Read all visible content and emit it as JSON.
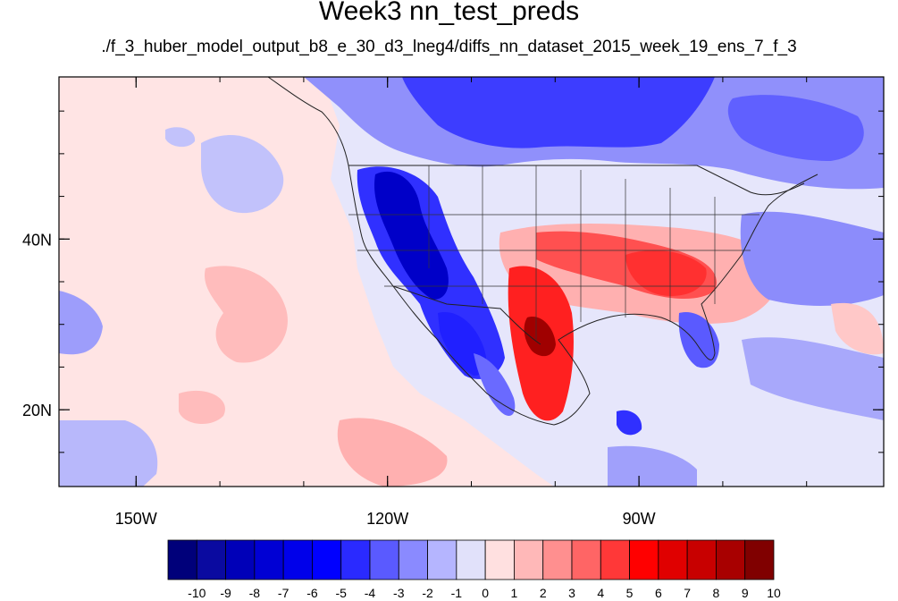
{
  "title": "Week3 nn_test_preds",
  "subtitle": "./f_3_huber_model_output_b8_e_30_d3_lneg4/diffs_nn_dataset_2015_week_19_ens_7_f_3",
  "lon_range": [
    -159.2,
    -60.8
  ],
  "lat_range": [
    11.0,
    59.0
  ],
  "lon_ticks": [
    {
      "value": -150,
      "label": "150W"
    },
    {
      "value": -120,
      "label": "120W"
    },
    {
      "value": -90,
      "label": "90W"
    }
  ],
  "lat_ticks": [
    {
      "value": 40,
      "label": "40N"
    },
    {
      "value": 20,
      "label": "20N"
    }
  ],
  "colorbar": {
    "labels": [
      "-10",
      "-9",
      "-8",
      "-7",
      "-6",
      "-5",
      "-4",
      "-3",
      "-2",
      "-1",
      "0",
      "1",
      "2",
      "3",
      "4",
      "5",
      "6",
      "7",
      "8",
      "9",
      "10"
    ],
    "colors": [
      "#00007a",
      "#0a0aa0",
      "#0000b8",
      "#0000d4",
      "#0000ea",
      "#0000ff",
      "#2a2aff",
      "#5a5aff",
      "#8a8aff",
      "#b5b5ff",
      "#e1e1fa",
      "#ffe0e0",
      "#ffb8b8",
      "#ff8f8f",
      "#ff6565",
      "#ff3838",
      "#ff0000",
      "#e00000",
      "#c80000",
      "#a80000",
      "#800000"
    ]
  }
}
